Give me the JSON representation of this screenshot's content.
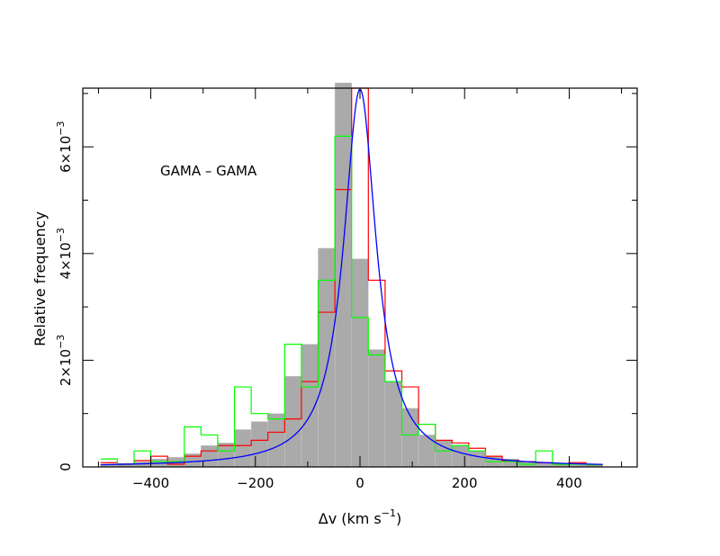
{
  "chart_data": {
    "type": "bar",
    "annotation": "GAMA – GAMA",
    "xlabel_main": "Δv (km s",
    "xlabel_exp": "−1",
    "xlabel_close": ")",
    "ylabel": "Relative frequency",
    "x_ticks": [
      -400,
      -200,
      0,
      200,
      400
    ],
    "x_tick_labels": [
      "−400",
      "−200",
      "0",
      "200",
      "400"
    ],
    "y_tick_labels": [
      {
        "value": 0,
        "mant": "0",
        "exp": ""
      },
      {
        "value": 0.002,
        "mant": "2×10",
        "exp": "−3"
      },
      {
        "value": 0.004,
        "mant": "4×10",
        "exp": "−3"
      },
      {
        "value": 0.006,
        "mant": "6×10",
        "exp": "−3"
      }
    ],
    "xlim": [
      -530,
      530
    ],
    "ylim": [
      0,
      0.0071
    ],
    "bin_width": 32,
    "bin_start": -496,
    "colors": {
      "gray": "#aaaaaa",
      "red": "#ff0000",
      "green": "#00ff00",
      "blue": "#0000ff"
    },
    "series": [
      {
        "style": "filled-gray",
        "values": [
          5e-05,
          7e-05,
          0.0001,
          0.00015,
          0.00018,
          0.00025,
          0.0004,
          0.00045,
          0.0007,
          0.00085,
          0.001,
          0.0017,
          0.0023,
          0.0041,
          0.0072,
          0.0039,
          0.0022,
          0.0016,
          0.0011,
          0.0006,
          0.0005,
          0.0004,
          0.0003,
          0.0002,
          0.00015,
          0.0001,
          8e-05,
          5e-05,
          4e-05,
          3e-05
        ]
      },
      {
        "style": "step-red",
        "values": [
          8e-05,
          5e-05,
          0.00012,
          0.0002,
          5e-05,
          0.0002,
          0.0003,
          0.0004,
          0.0004,
          0.0005,
          0.00065,
          0.0009,
          0.0016,
          0.0029,
          0.0052,
          0.0071,
          0.0035,
          0.0018,
          0.0015,
          0.0008,
          0.0005,
          0.00045,
          0.00035,
          0.0002,
          0.00012,
          0.0001,
          8e-05,
          5e-05,
          8e-05,
          4e-05
        ]
      },
      {
        "style": "step-green",
        "values": [
          0.00015,
          5e-05,
          0.0003,
          0.0001,
          0.0001,
          0.00075,
          0.0006,
          0.0003,
          0.0015,
          0.001,
          0.0009,
          0.0023,
          0.0015,
          0.0035,
          0.0062,
          0.0028,
          0.0021,
          0.0016,
          0.0006,
          0.0008,
          0.0003,
          0.0004,
          0.0003,
          0.0001,
          0.0001,
          5e-05,
          0.0003,
          5e-05,
          5e-05,
          4e-05
        ]
      },
      {
        "style": "fit-blue",
        "function": "lorentzian",
        "center": 0,
        "peak": 0.00708,
        "hwhm": 38
      }
    ]
  }
}
